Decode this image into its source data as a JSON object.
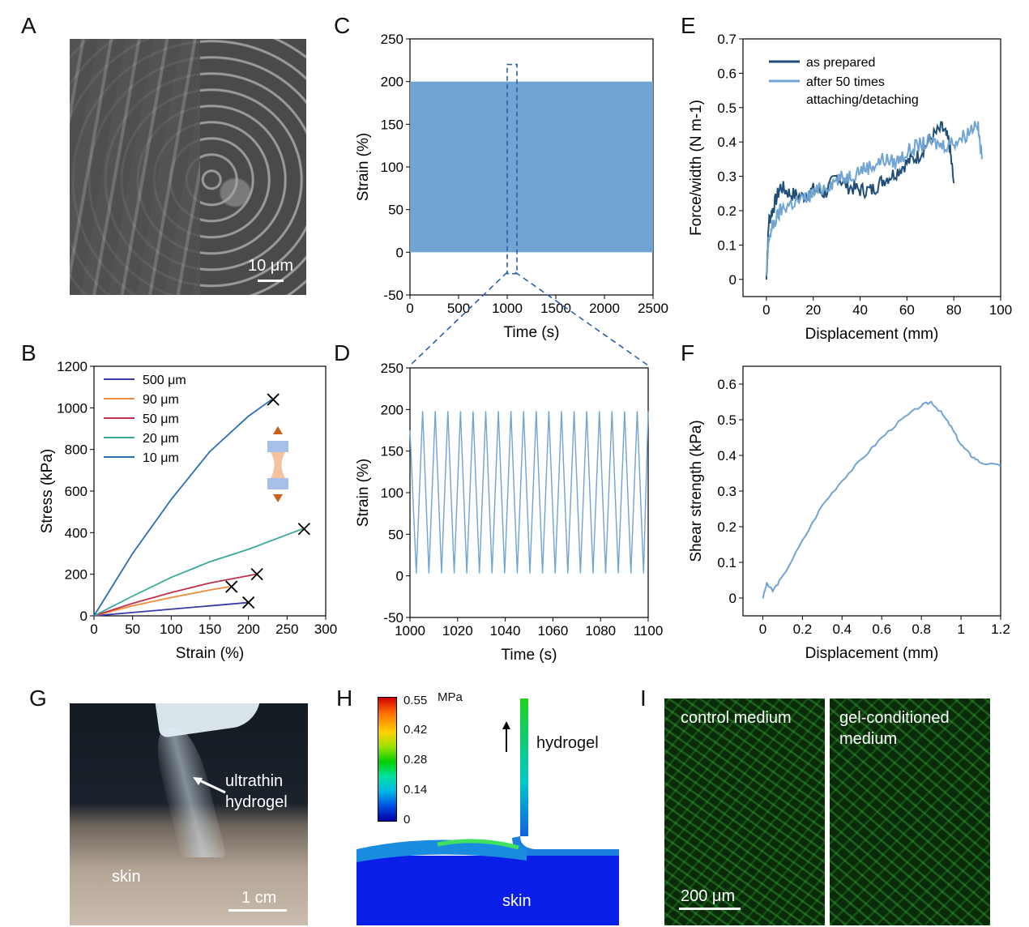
{
  "panel_letters": [
    "A",
    "B",
    "C",
    "D",
    "E",
    "F",
    "G",
    "H",
    "I"
  ],
  "panel_a": {
    "scale_bar": "10 μm"
  },
  "panel_g": {
    "label_ultrathin": "ultrathin",
    "label_hydrogel": "hydrogel",
    "label_skin": "skin",
    "scale_bar": "1 cm"
  },
  "panel_h": {
    "unit": "MPa",
    "colorbar_ticks": [
      "0.55",
      "0.42",
      "0.28",
      "0.14",
      "0"
    ],
    "label_hydrogel": "hydrogel",
    "label_skin": "skin"
  },
  "panel_i": {
    "left_label": "control medium",
    "right_label_line1": "gel-conditioned",
    "right_label_line2": "medium",
    "scale_bar": "200 μm"
  },
  "chart_data": [
    {
      "panel": "B",
      "type": "line",
      "xlabel": "Strain (%)",
      "ylabel": "Stress (kPa)",
      "xlim": [
        0,
        300
      ],
      "ylim": [
        0,
        1200
      ],
      "xticks": [
        0,
        50,
        100,
        150,
        200,
        250,
        300
      ],
      "yticks": [
        0,
        200,
        400,
        600,
        800,
        1000,
        1200
      ],
      "legend_position": "top-left",
      "series": [
        {
          "name": "500 μm",
          "color": "#3b3aa8",
          "x": [
            0,
            50,
            100,
            150,
            200
          ],
          "y": [
            0,
            16,
            32,
            48,
            64
          ]
        },
        {
          "name": "90 μm",
          "color": "#f08a3c",
          "x": [
            0,
            50,
            100,
            150,
            175
          ],
          "y": [
            0,
            48,
            88,
            124,
            140
          ]
        },
        {
          "name": "50 μm",
          "color": "#c0304a",
          "x": [
            0,
            50,
            100,
            150,
            210
          ],
          "y": [
            0,
            60,
            112,
            158,
            200
          ]
        },
        {
          "name": "20 μm",
          "color": "#3aa89a",
          "x": [
            0,
            50,
            100,
            150,
            200,
            270
          ],
          "y": [
            0,
            95,
            185,
            260,
            320,
            418
          ]
        },
        {
          "name": "10 μm",
          "color": "#2a6fb3",
          "x": [
            0,
            50,
            100,
            150,
            200,
            230
          ],
          "y": [
            0,
            300,
            560,
            790,
            960,
            1040
          ]
        }
      ],
      "break_points": [
        [
          200,
          64
        ],
        [
          178,
          140
        ],
        [
          211,
          200
        ],
        [
          272,
          418
        ],
        [
          232,
          1040
        ]
      ]
    },
    {
      "panel": "C",
      "type": "area",
      "xlabel": "Time (s)",
      "ylabel": "Strain (%)",
      "xlim": [
        0,
        2500
      ],
      "ylim": [
        -50,
        250
      ],
      "xticks": [
        0,
        500,
        1000,
        1500,
        2000,
        2500
      ],
      "yticks": [
        -50,
        0,
        50,
        100,
        150,
        200,
        250
      ],
      "series": [
        {
          "color": "#6fa4d3",
          "x_range": [
            0,
            2500
          ],
          "y_min": 0,
          "y_max": 200
        }
      ],
      "zoom_window": {
        "x": [
          1000,
          1100
        ],
        "y": [
          -25,
          220
        ]
      }
    },
    {
      "panel": "D",
      "type": "line",
      "xlabel": "Time (s)",
      "ylabel": "Strain (%)",
      "xlim": [
        1000,
        1100
      ],
      "ylim": [
        -50,
        250
      ],
      "xticks": [
        1000,
        1020,
        1040,
        1060,
        1080,
        1100
      ],
      "yticks": [
        -50,
        0,
        50,
        100,
        150,
        200,
        250
      ],
      "series": [
        {
          "color": "#6fa4d3",
          "period_s": 5.3,
          "y_min": 3,
          "y_max": 198
        }
      ]
    },
    {
      "panel": "E",
      "type": "line",
      "xlabel": "Displacement (mm)",
      "ylabel": "Force/width (N m-1)",
      "xlim": [
        -10,
        100
      ],
      "ylim": [
        -0.05,
        0.7
      ],
      "xticks": [
        0,
        20,
        40,
        60,
        80,
        100
      ],
      "yticks": [
        0.0,
        0.1,
        0.2,
        0.3,
        0.4,
        0.5,
        0.6,
        0.7
      ],
      "legend_position": "top-left",
      "series": [
        {
          "name": "as prepared",
          "color": "#1f4e79",
          "x": [
            0,
            1,
            3,
            6,
            10,
            15,
            20,
            25,
            30,
            35,
            40,
            45,
            50,
            55,
            60,
            65,
            70,
            75,
            78,
            80
          ],
          "y": [
            0.0,
            0.17,
            0.21,
            0.27,
            0.25,
            0.24,
            0.26,
            0.25,
            0.3,
            0.27,
            0.26,
            0.26,
            0.29,
            0.31,
            0.34,
            0.36,
            0.41,
            0.44,
            0.4,
            0.28
          ]
        },
        {
          "name": "after 50 times attaching/detaching",
          "color": "#6fa4d3",
          "x": [
            0,
            1,
            3,
            6,
            10,
            15,
            20,
            25,
            30,
            35,
            40,
            45,
            50,
            55,
            60,
            65,
            70,
            75,
            80,
            85,
            90,
            92
          ],
          "y": [
            0.0,
            0.12,
            0.16,
            0.2,
            0.22,
            0.23,
            0.25,
            0.27,
            0.29,
            0.3,
            0.32,
            0.33,
            0.35,
            0.34,
            0.37,
            0.39,
            0.4,
            0.39,
            0.4,
            0.42,
            0.46,
            0.35
          ]
        }
      ]
    },
    {
      "panel": "F",
      "type": "line",
      "xlabel": "Displacement (mm)",
      "ylabel": "Shear strength (kPa)",
      "xlim": [
        -0.1,
        1.2
      ],
      "ylim": [
        -0.05,
        0.65
      ],
      "xticks": [
        0.0,
        0.2,
        0.4,
        0.6,
        0.8,
        1.0,
        1.2
      ],
      "yticks": [
        0,
        0.1,
        0.2,
        0.3,
        0.4,
        0.5,
        0.6
      ],
      "series": [
        {
          "color": "#6fa4d3",
          "x": [
            0,
            0.02,
            0.05,
            0.1,
            0.2,
            0.3,
            0.4,
            0.5,
            0.6,
            0.7,
            0.8,
            0.85,
            0.9,
            0.95,
            1.0,
            1.05,
            1.1,
            1.2
          ],
          "y": [
            0,
            0.04,
            0.02,
            0.06,
            0.16,
            0.26,
            0.33,
            0.39,
            0.45,
            0.5,
            0.54,
            0.55,
            0.52,
            0.48,
            0.43,
            0.4,
            0.38,
            0.37
          ]
        }
      ]
    }
  ]
}
